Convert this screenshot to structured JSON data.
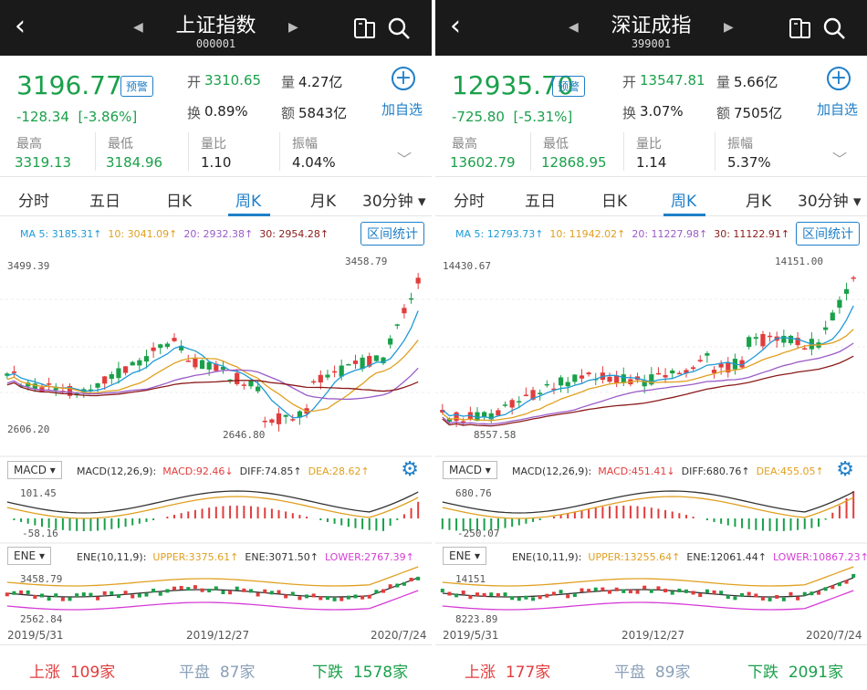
{
  "panels": [
    {
      "title": "上证指数",
      "code": "000001",
      "price": "3196.77",
      "warn_label": "预警",
      "change": "-128.34",
      "change_pct": "[-3.86%]",
      "open_label": "开",
      "open": "3310.65",
      "vol_label": "量",
      "vol": "4.27亿",
      "turnover_label": "换",
      "turnover": "0.89%",
      "amount_label": "额",
      "amount": "5843亿",
      "add_label": "加自选",
      "high_label": "最高",
      "high": "3319.13",
      "low_label": "最低",
      "low": "3184.96",
      "ratio_label": "量比",
      "ratio": "1.10",
      "amp_label": "振幅",
      "amp": "4.04%",
      "tabs": [
        "分时",
        "五日",
        "日K",
        "周K",
        "月K",
        "30分钟 ▾"
      ],
      "ma": {
        "ma5": "MA 5: 3185.31↑",
        "ma10": "10: 3041.09↑",
        "ma20": "20: 2932.38↑",
        "ma30": "30: 2954.28↑"
      },
      "range_label": "区间统计",
      "y_top": "3499.39",
      "y_bot": "2606.20",
      "max_label": "3458.79",
      "min_label": "2646.80",
      "macd_btn": "MACD ▾",
      "macd": {
        "title": "MACD(12,26,9):",
        "macd": "MACD:92.46↓",
        "diff": "DIFF:74.85↑",
        "dea": "DEA:28.62↑"
      },
      "macd_top": "101.45",
      "macd_bot": "-58.16",
      "ene_btn": "ENE ▾",
      "ene": {
        "title": "ENE(10,11,9):",
        "upper": "UPPER:3375.61↑",
        "mid": "ENE:3071.50↑",
        "lower": "LOWER:2767.39↑"
      },
      "ene_top": "3458.79",
      "ene_bot": "2562.84",
      "dates": [
        "2019/5/31",
        "2019/12/27",
        "2020/7/24"
      ],
      "up_label": "上涨",
      "up": "109家",
      "flat_label": "平盘",
      "flat": "87家",
      "down_label": "下跌",
      "down": "1578家"
    },
    {
      "title": "深证成指",
      "code": "399001",
      "price": "12935.70",
      "warn_label": "预警",
      "change": "-725.80",
      "change_pct": "[-5.31%]",
      "open_label": "开",
      "open": "13547.81",
      "vol_label": "量",
      "vol": "5.66亿",
      "turnover_label": "换",
      "turnover": "3.07%",
      "amount_label": "额",
      "amount": "7505亿",
      "add_label": "加自选",
      "high_label": "最高",
      "high": "13602.79",
      "low_label": "最低",
      "low": "12868.95",
      "ratio_label": "量比",
      "ratio": "1.14",
      "amp_label": "振幅",
      "amp": "5.37%",
      "tabs": [
        "分时",
        "五日",
        "日K",
        "周K",
        "月K",
        "30分钟 ▾"
      ],
      "ma": {
        "ma5": "MA 5: 12793.73↑",
        "ma10": "10: 11942.02↑",
        "ma20": "20: 11227.98↑",
        "ma30": "30: 11122.91↑"
      },
      "range_label": "区间统计",
      "y_top": "14430.67",
      "y_bot": "",
      "max_label": "14151.00",
      "min_label": "8557.58",
      "macd_btn": "MACD ▾",
      "macd": {
        "title": "MACD(12,26,9):",
        "macd": "MACD:451.41↓",
        "diff": "DIFF:680.76↑",
        "dea": "DEA:455.05↑"
      },
      "macd_top": "680.76",
      "macd_bot": "-250.07",
      "ene_btn": "ENE ▾",
      "ene": {
        "title": "ENE(10,11,9):",
        "upper": "UPPER:13255.64↑",
        "mid": "ENE:12061.44↑",
        "lower": "LOWER:10867.23↑"
      },
      "ene_top": "14151",
      "ene_bot": "8223.89",
      "dates": [
        "2019/5/31",
        "2019/12/27",
        "2020/7/24"
      ],
      "up_label": "上涨",
      "up": "177家",
      "flat_label": "平盘",
      "flat": "89家",
      "down_label": "下跌",
      "down": "2091家"
    }
  ],
  "colors": {
    "up": "#e23c3c",
    "down": "#1aa04a",
    "accent": "#1f7fc8",
    "ma5": "#1f9ad6",
    "ma10": "#e0a020",
    "ma20": "#9a5cc8",
    "ma30": "#8b1a1a"
  }
}
